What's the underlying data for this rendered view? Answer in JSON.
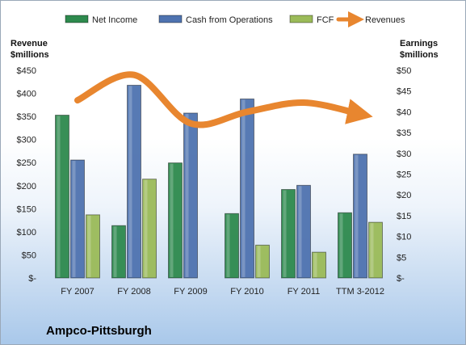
{
  "chart_data": {
    "type": "bar",
    "categories": [
      "FY 2007",
      "FY 2008",
      "FY 2009",
      "FY 2010",
      "FY 2011",
      "TTM 3-2012"
    ],
    "series": [
      {
        "name": "Net Income",
        "axis": "right",
        "color": "#2e8a4e",
        "values": [
          39.2,
          12.6,
          27.7,
          15.5,
          21.3,
          15.7
        ]
      },
      {
        "name": "Cash from Operations",
        "axis": "right",
        "color": "#4f73b0",
        "values": [
          28.4,
          46.4,
          39.7,
          43.1,
          22.3,
          29.8
        ]
      },
      {
        "name": "FCF",
        "axis": "right",
        "color": "#9bbb59",
        "values": [
          15.2,
          23.8,
          0,
          7.9,
          6.2,
          13.4
        ]
      }
    ],
    "trend": {
      "name": "Revenues",
      "axis": "left",
      "color": "#e8862f",
      "values": [
        385,
        440,
        335,
        360,
        380,
        355
      ]
    },
    "y_left": {
      "header_line1": "Revenue",
      "header_line2": "$millions",
      "ylim": [
        0,
        450
      ],
      "ticks": [
        "$-",
        "$50",
        "$100",
        "$150",
        "$200",
        "$250",
        "$300",
        "$350",
        "$400",
        "$450"
      ]
    },
    "y_right": {
      "header_line1": "Earnings",
      "header_line2": "$millions",
      "ylim": [
        0,
        50
      ],
      "ticks": [
        "$-",
        "$5",
        "$10",
        "$15",
        "$20",
        "$25",
        "$30",
        "$35",
        "$40",
        "$45",
        "$50"
      ]
    },
    "legend_position": "top",
    "grid": false
  },
  "company_label": "Ampco-Pittsburgh"
}
